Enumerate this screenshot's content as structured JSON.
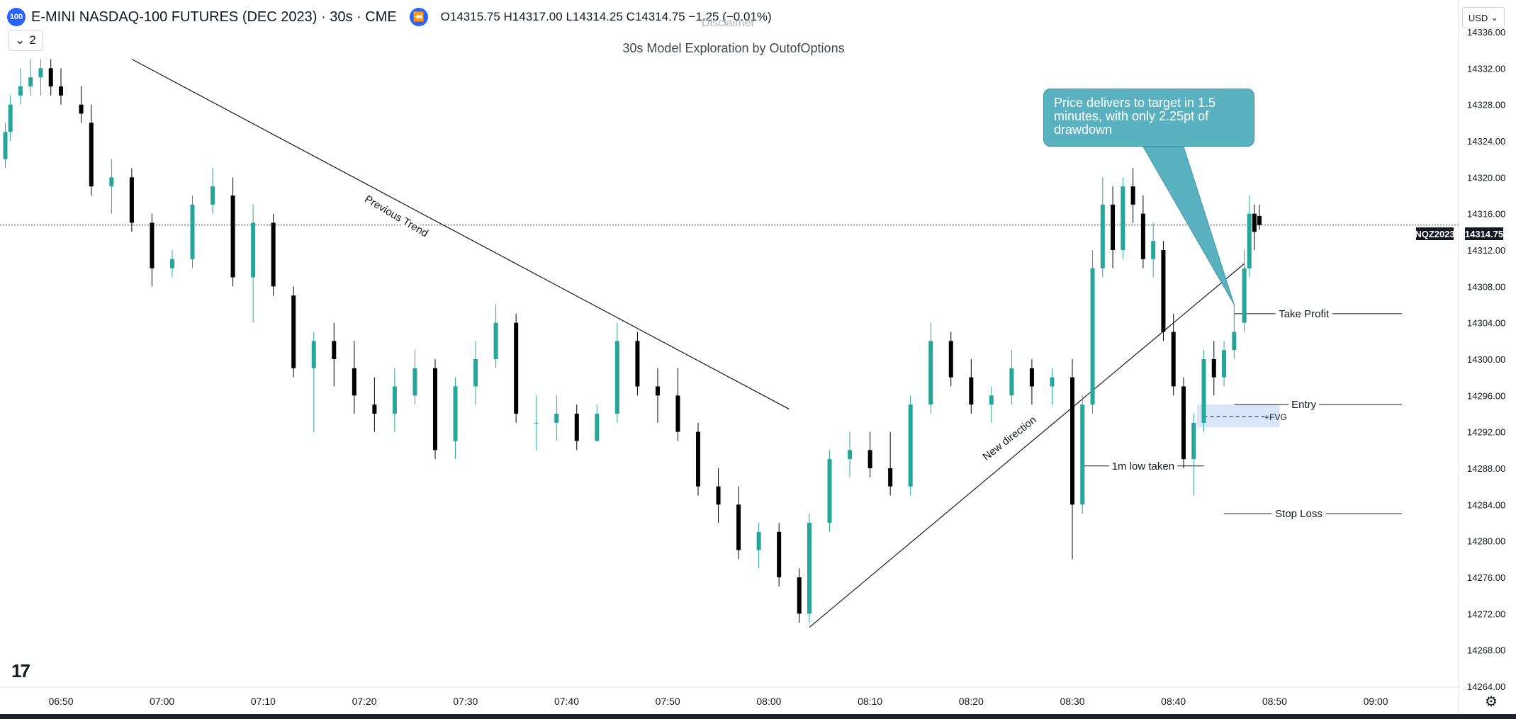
{
  "header": {
    "symbol_badge": "100",
    "title": "E-MINI NASDAQ-100 FUTURES (DEC 2023) · 30s · CME",
    "ohlc": {
      "open": "O14315.75",
      "high": "H14317.00",
      "low": "L14314.25",
      "close": "C14314.75",
      "change": "−1.25 (−0.01%)"
    },
    "interval": "2",
    "currency": "USD",
    "disclaimer": "Disclaimer"
  },
  "caption": "30s Model Exploration by OutofOptions",
  "callout": "Price delivers to target in 1.5 minutes, with only 2.25pt of drawdown",
  "price_tag": {
    "symbol": "NQZ2023",
    "price": "14314.75"
  },
  "price_axis": {
    "labels": [
      "14336.00",
      "14332.00",
      "14328.00",
      "14324.00",
      "14320.00",
      "14316.00",
      "14312.00",
      "14308.00",
      "14304.00",
      "14300.00",
      "14296.00",
      "14292.00",
      "14288.00",
      "14284.00",
      "14280.00",
      "14276.00",
      "14272.00",
      "14268.00",
      "14264.00"
    ]
  },
  "time_axis": {
    "labels": [
      "06:50",
      "07:00",
      "07:10",
      "07:20",
      "07:30",
      "07:40",
      "07:50",
      "08:00",
      "08:10",
      "08:20",
      "08:30",
      "08:40",
      "08:50",
      "09:00"
    ]
  },
  "annotations": {
    "previous_trend": "Previous Trend",
    "new_direction": "New direction",
    "take_profit": "Take Profit",
    "entry": "Entry",
    "stop_loss": "Stop Loss",
    "low_taken": "1m low taken",
    "fvg": "+FVG"
  },
  "levels": {
    "take_profit": 14305,
    "entry": 14295,
    "stop_loss": 14283,
    "low_taken": 14288.25,
    "fvg_low": 14292.5,
    "fvg_high": 14295
  },
  "colors": {
    "up": "#26a69a",
    "down": "#000000",
    "accent": "#2962ff",
    "callout": "#5ab2c1"
  },
  "chart_data": {
    "type": "candlestick",
    "symbol": "NQZ2023",
    "interval": "30s",
    "y_range": [
      14264,
      14337
    ],
    "x_range": [
      "06:50",
      "09:00"
    ],
    "candles_approx": [
      {
        "t": "06:44:30",
        "o": 14322,
        "h": 14326,
        "l": 14321,
        "c": 14325
      },
      {
        "t": "06:45",
        "o": 14325,
        "h": 14329,
        "l": 14324,
        "c": 14328
      },
      {
        "t": "06:46",
        "o": 14329,
        "h": 14332,
        "l": 14328,
        "c": 14330
      },
      {
        "t": "06:47",
        "o": 14330,
        "h": 14333,
        "l": 14329,
        "c": 14331
      },
      {
        "t": "06:48",
        "o": 14331,
        "h": 14333,
        "l": 14329,
        "c": 14332
      },
      {
        "t": "06:49",
        "o": 14332,
        "h": 14333,
        "l": 14329,
        "c": 14330
      },
      {
        "t": "06:50",
        "o": 14330,
        "h": 14332,
        "l": 14328,
        "c": 14329
      },
      {
        "t": "06:52",
        "o": 14328,
        "h": 14330,
        "l": 14326,
        "c": 14327
      },
      {
        "t": "06:53",
        "o": 14326,
        "h": 14328,
        "l": 14318,
        "c": 14319
      },
      {
        "t": "06:55",
        "o": 14319,
        "h": 14322,
        "l": 14316,
        "c": 14320
      },
      {
        "t": "06:57",
        "o": 14320,
        "h": 14321,
        "l": 14314,
        "c": 14315
      },
      {
        "t": "06:59",
        "o": 14315,
        "h": 14316,
        "l": 14308,
        "c": 14310
      },
      {
        "t": "07:01",
        "o": 14310,
        "h": 14312,
        "l": 14309,
        "c": 14311
      },
      {
        "t": "07:03",
        "o": 14311,
        "h": 14318,
        "l": 14310,
        "c": 14317
      },
      {
        "t": "07:05",
        "o": 14317,
        "h": 14321,
        "l": 14316,
        "c": 14319
      },
      {
        "t": "07:07",
        "o": 14318,
        "h": 14320,
        "l": 14308,
        "c": 14309
      },
      {
        "t": "07:09",
        "o": 14309,
        "h": 14317,
        "l": 14304,
        "c": 14315
      },
      {
        "t": "07:11",
        "o": 14315,
        "h": 14316,
        "l": 14307,
        "c": 14308
      },
      {
        "t": "07:13",
        "o": 14307,
        "h": 14308,
        "l": 14298,
        "c": 14299
      },
      {
        "t": "07:15",
        "o": 14299,
        "h": 14303,
        "l": 14292,
        "c": 14302
      },
      {
        "t": "07:17",
        "o": 14302,
        "h": 14304,
        "l": 14297,
        "c": 14300
      },
      {
        "t": "07:19",
        "o": 14299,
        "h": 14302,
        "l": 14294,
        "c": 14296
      },
      {
        "t": "07:21",
        "o": 14295,
        "h": 14298,
        "l": 14292,
        "c": 14294
      },
      {
        "t": "07:23",
        "o": 14294,
        "h": 14299,
        "l": 14292,
        "c": 14297
      },
      {
        "t": "07:25",
        "o": 14296,
        "h": 14301,
        "l": 14295,
        "c": 14299
      },
      {
        "t": "07:27",
        "o": 14299,
        "h": 14300,
        "l": 14289,
        "c": 14290
      },
      {
        "t": "07:29",
        "o": 14291,
        "h": 14298,
        "l": 14289,
        "c": 14297
      },
      {
        "t": "07:31",
        "o": 14297,
        "h": 14302,
        "l": 14295,
        "c": 14300
      },
      {
        "t": "07:33",
        "o": 14300,
        "h": 14306,
        "l": 14299,
        "c": 14304
      },
      {
        "t": "07:35",
        "o": 14304,
        "h": 14305,
        "l": 14293,
        "c": 14294
      },
      {
        "t": "07:37",
        "o": 14293,
        "h": 14296,
        "l": 14290,
        "c": 14293
      },
      {
        "t": "07:39",
        "o": 14293,
        "h": 14296,
        "l": 14291,
        "c": 14294
      },
      {
        "t": "07:41",
        "o": 14294,
        "h": 14295,
        "l": 14290,
        "c": 14291
      },
      {
        "t": "07:43",
        "o": 14291,
        "h": 14295,
        "l": 14291,
        "c": 14294
      },
      {
        "t": "07:45",
        "o": 14294,
        "h": 14304,
        "l": 14293,
        "c": 14302
      },
      {
        "t": "07:47",
        "o": 14302,
        "h": 14303,
        "l": 14296,
        "c": 14297
      },
      {
        "t": "07:49",
        "o": 14297,
        "h": 14299,
        "l": 14293,
        "c": 14296
      },
      {
        "t": "07:51",
        "o": 14296,
        "h": 14299,
        "l": 14291,
        "c": 14292
      },
      {
        "t": "07:53",
        "o": 14292,
        "h": 14293,
        "l": 14285,
        "c": 14286
      },
      {
        "t": "07:55",
        "o": 14286,
        "h": 14288,
        "l": 14282,
        "c": 14284
      },
      {
        "t": "07:57",
        "o": 14284,
        "h": 14286,
        "l": 14278,
        "c": 14279
      },
      {
        "t": "07:59",
        "o": 14279,
        "h": 14282,
        "l": 14277,
        "c": 14281
      },
      {
        "t": "08:01",
        "o": 14281,
        "h": 14282,
        "l": 14275,
        "c": 14276
      },
      {
        "t": "08:03",
        "o": 14276,
        "h": 14277,
        "l": 14271,
        "c": 14272
      },
      {
        "t": "08:04",
        "o": 14272,
        "h": 14283,
        "l": 14271,
        "c": 14282
      },
      {
        "t": "08:06",
        "o": 14282,
        "h": 14290,
        "l": 14281,
        "c": 14289
      },
      {
        "t": "08:08",
        "o": 14289,
        "h": 14292,
        "l": 14287,
        "c": 14290
      },
      {
        "t": "08:10",
        "o": 14290,
        "h": 14292,
        "l": 14287,
        "c": 14288
      },
      {
        "t": "08:12",
        "o": 14288,
        "h": 14292,
        "l": 14285,
        "c": 14286
      },
      {
        "t": "08:14",
        "o": 14286,
        "h": 14296,
        "l": 14285,
        "c": 14295
      },
      {
        "t": "08:16",
        "o": 14295,
        "h": 14304,
        "l": 14294,
        "c": 14302
      },
      {
        "t": "08:18",
        "o": 14302,
        "h": 14303,
        "l": 14297,
        "c": 14298
      },
      {
        "t": "08:20",
        "o": 14298,
        "h": 14300,
        "l": 14294,
        "c": 14295
      },
      {
        "t": "08:22",
        "o": 14295,
        "h": 14297,
        "l": 14293,
        "c": 14296
      },
      {
        "t": "08:24",
        "o": 14296,
        "h": 14301,
        "l": 14295,
        "c": 14299
      },
      {
        "t": "08:26",
        "o": 14299,
        "h": 14300,
        "l": 14295,
        "c": 14297
      },
      {
        "t": "08:28",
        "o": 14297,
        "h": 14299,
        "l": 14295,
        "c": 14298
      },
      {
        "t": "08:30",
        "o": 14298,
        "h": 14300,
        "l": 14278,
        "c": 14284
      },
      {
        "t": "08:31",
        "o": 14284,
        "h": 14296,
        "l": 14283,
        "c": 14295
      },
      {
        "t": "08:32",
        "o": 14295,
        "h": 14312,
        "l": 14294,
        "c": 14310
      },
      {
        "t": "08:33",
        "o": 14310,
        "h": 14320,
        "l": 14309,
        "c": 14317
      },
      {
        "t": "08:34",
        "o": 14317,
        "h": 14319,
        "l": 14310,
        "c": 14312
      },
      {
        "t": "08:35",
        "o": 14312,
        "h": 14320,
        "l": 14311,
        "c": 14319
      },
      {
        "t": "08:36",
        "o": 14319,
        "h": 14321,
        "l": 14315,
        "c": 14317
      },
      {
        "t": "08:37",
        "o": 14316,
        "h": 14318,
        "l": 14310,
        "c": 14311
      },
      {
        "t": "08:38",
        "o": 14311,
        "h": 14315,
        "l": 14309,
        "c": 14313
      },
      {
        "t": "08:39",
        "o": 14312,
        "h": 14313,
        "l": 14302,
        "c": 14303
      },
      {
        "t": "08:40",
        "o": 14303,
        "h": 14305,
        "l": 14296,
        "c": 14297
      },
      {
        "t": "08:41",
        "o": 14297,
        "h": 14298,
        "l": 14288,
        "c": 14289
      },
      {
        "t": "08:42",
        "o": 14289,
        "h": 14294,
        "l": 14285,
        "c": 14293
      },
      {
        "t": "08:43",
        "o": 14293,
        "h": 14301,
        "l": 14292,
        "c": 14300
      },
      {
        "t": "08:44",
        "o": 14300,
        "h": 14302,
        "l": 14296,
        "c": 14298
      },
      {
        "t": "08:45",
        "o": 14298,
        "h": 14302,
        "l": 14297,
        "c": 14301
      },
      {
        "t": "08:46",
        "o": 14301,
        "h": 14306,
        "l": 14300,
        "c": 14303
      },
      {
        "t": "08:47",
        "o": 14304,
        "h": 14312,
        "l": 14303,
        "c": 14310
      },
      {
        "t": "08:47:30",
        "o": 14310,
        "h": 14318,
        "l": 14309,
        "c": 14316
      },
      {
        "t": "08:48",
        "o": 14316,
        "h": 14317,
        "l": 14312,
        "c": 14314
      },
      {
        "t": "08:48:30",
        "o": 14315.75,
        "h": 14317,
        "l": 14314.25,
        "c": 14314.75
      }
    ]
  }
}
